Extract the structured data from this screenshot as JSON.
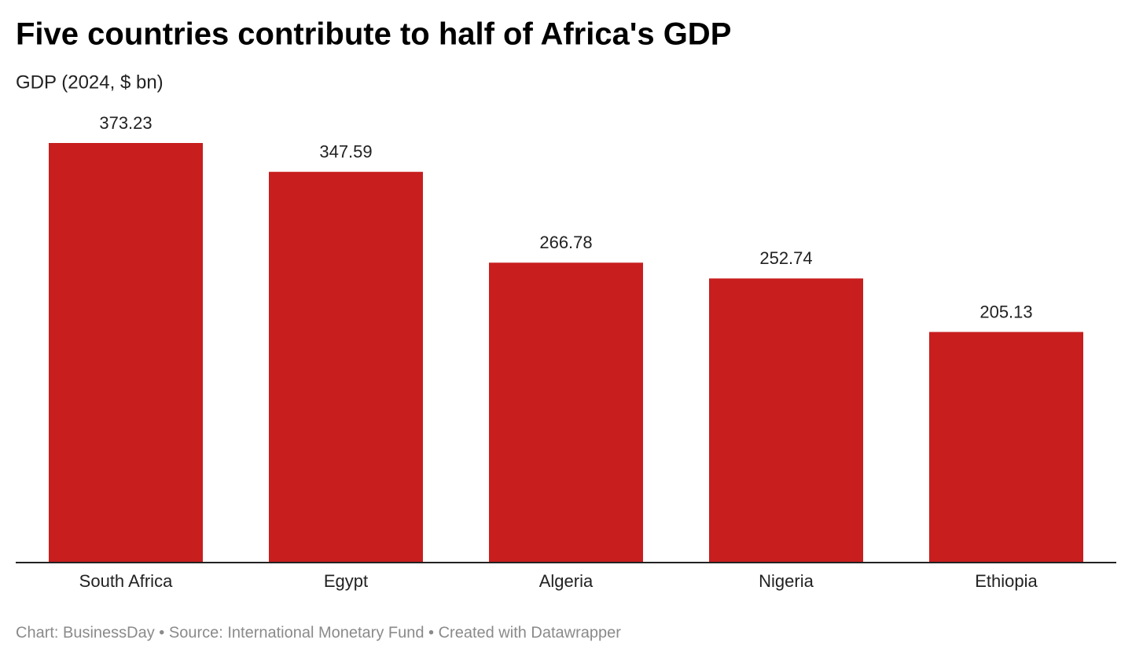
{
  "chart_data": {
    "type": "bar",
    "title": "Five countries contribute to half of Africa's GDP",
    "subtitle": "GDP (2024, $ bn)",
    "categories": [
      "South Africa",
      "Egypt",
      "Algeria",
      "Nigeria",
      "Ethiopia"
    ],
    "values": [
      373.23,
      347.59,
      266.78,
      252.74,
      205.13
    ],
    "color": "#c81e1e",
    "footer": "Chart: BusinessDay • Source: International Monetary Fund • Created with Datawrapper"
  }
}
